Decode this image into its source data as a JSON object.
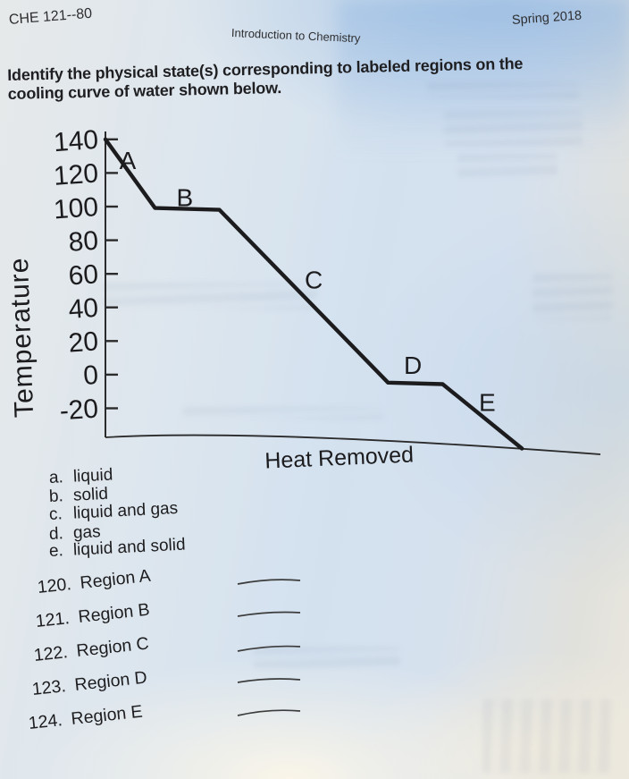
{
  "header": {
    "course_code": "CHE 121--80",
    "course_title": "Introduction to Chemistry",
    "term": "Spring 2018"
  },
  "instruction": {
    "lines": [
      "Identify the physical state(s) corresponding to labeled regions on the",
      "cooling curve of water shown below."
    ]
  },
  "chart_data": {
    "type": "line",
    "title": "",
    "xlabel": "Heat Removed",
    "ylabel": "Temperature",
    "y_ticks": [
      140,
      120,
      100,
      80,
      60,
      40,
      20,
      0,
      -20
    ],
    "ylim": [
      -40,
      150
    ],
    "grid": false,
    "legend": false,
    "series": [
      {
        "name": "cooling curve of water",
        "points": [
          [
            0,
            140
          ],
          [
            10,
            100
          ],
          [
            23,
            100
          ],
          [
            57,
            0
          ],
          [
            68,
            0
          ],
          [
            84,
            -37
          ]
        ]
      }
    ],
    "annotations": [
      {
        "label": "A",
        "x": 4.5,
        "y": 128
      },
      {
        "label": "B",
        "x": 16,
        "y": 107
      },
      {
        "label": "C",
        "x": 42,
        "y": 60
      },
      {
        "label": "D",
        "x": 62,
        "y": 11
      },
      {
        "label": "E",
        "x": 77,
        "y": -10
      }
    ]
  },
  "options": [
    {
      "letter": "a.",
      "text": "liquid"
    },
    {
      "letter": "b.",
      "text": "solid"
    },
    {
      "letter": "c.",
      "text": "liquid and gas"
    },
    {
      "letter": "d.",
      "text": "gas"
    },
    {
      "letter": "e.",
      "text": "liquid and solid"
    }
  ],
  "questions": [
    {
      "number": "120.",
      "label": "Region A",
      "answer": ""
    },
    {
      "number": "121.",
      "label": "Region B",
      "answer": ""
    },
    {
      "number": "122.",
      "label": "Region C",
      "answer": ""
    },
    {
      "number": "123.",
      "label": "Region D",
      "answer": ""
    },
    {
      "number": "124.",
      "label": "Region E",
      "answer": ""
    }
  ],
  "colors": {
    "ink": "#1c1c1e",
    "paper_blue_tint": "#d3e1ef",
    "paper_warm_tint": "#eae7de"
  }
}
